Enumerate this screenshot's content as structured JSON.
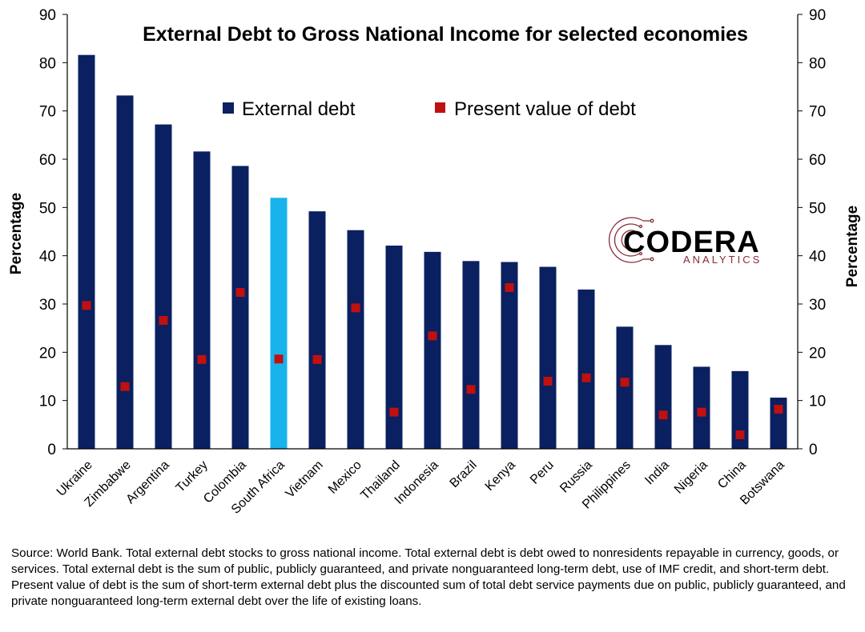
{
  "chart_data": {
    "type": "bar",
    "title": "External Debt to Gross National Income for selected economies",
    "ylabel_left": "Percentage",
    "ylabel_right": "Percentage",
    "ylim": [
      0,
      90
    ],
    "yticks": [
      0,
      10,
      20,
      30,
      40,
      50,
      60,
      70,
      80,
      90
    ],
    "grid": false,
    "legend_position": "top-center",
    "categories": [
      "Ukraine",
      "Zimbabwe",
      "Argentina",
      "Turkey",
      "Colombia",
      "South Africa",
      "Vietnam",
      "Mexico",
      "Thailand",
      "Indonesia",
      "Brazil",
      "Kenya",
      "Peru",
      "Russia",
      "Philippines",
      "India",
      "Nigeria",
      "China",
      "Botswana"
    ],
    "highlight_category": "South Africa",
    "series": [
      {
        "name": "External debt",
        "kind": "bar",
        "values": [
          81.6,
          73.2,
          67.2,
          61.6,
          58.6,
          52.0,
          49.2,
          45.3,
          42.1,
          40.8,
          38.9,
          38.7,
          37.7,
          33.0,
          25.3,
          21.5,
          17.0,
          16.1,
          10.6
        ]
      },
      {
        "name": "Present value of debt",
        "kind": "marker",
        "values": [
          29.7,
          12.9,
          26.6,
          18.5,
          32.4,
          18.6,
          18.5,
          29.2,
          7.6,
          23.4,
          12.3,
          33.4,
          14.0,
          14.7,
          13.8,
          7.0,
          7.6,
          2.9,
          8.2
        ]
      }
    ],
    "colors": {
      "bar": "#0a2060",
      "bar_highlight": "#19b3ec",
      "marker": "#c01010",
      "axis": "#000000"
    }
  },
  "logo": {
    "name": "CODERA",
    "tagline": "ANALYTICS",
    "icon": "circuit-c-icon",
    "colors": {
      "icon": "#8a2a3a",
      "name": "#000000",
      "tagline": "#8a2a3a"
    }
  },
  "source_note": "Source: World Bank. Total external debt stocks to gross national income. Total external debt is debt owed to nonresidents repayable in currency, goods, or services. Total external debt is the sum of public, publicly guaranteed, and private nonguaranteed long-term debt, use of IMF credit, and short-term debt. Present value of debt is the sum of short-term external debt plus the discounted sum of total debt service payments due on public, publicly guaranteed, and private nonguaranteed long-term external debt over the life of existing loans."
}
